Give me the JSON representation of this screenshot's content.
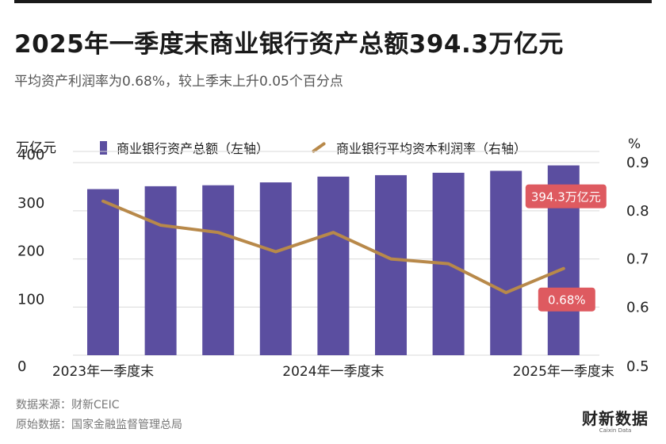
{
  "title": "2025年一季度末商业银行资产总额394.3万亿元",
  "subtitle": "平均资产利润率为0.68%，较上季末上升0.05个百分点",
  "source": "数据来源：财新CEIC",
  "origin": "原始数据：国家金融监督管理总局",
  "logo": {
    "main": "财新数据",
    "sub": "Caixin Data"
  },
  "colors": {
    "bar": "#5b4ea0",
    "line": "#b8894a",
    "callout": "#de5a60",
    "grid": "#d9d9d9"
  },
  "chart_data": {
    "type": "bar+line",
    "categories": [
      "2023年一季度末",
      "",
      "",
      "",
      "2024年一季度末",
      "",
      "",
      "",
      "2025年一季度末"
    ],
    "x_tick_labels": [
      "2023年一季度末",
      "2024年一季度末",
      "2025年一季度末"
    ],
    "left_axis_unit": "万亿元",
    "right_axis_unit": "%",
    "left_ylim": [
      0,
      420
    ],
    "right_ylim": [
      0.5,
      0.92
    ],
    "left_ticks": [
      0,
      100,
      200,
      300,
      400
    ],
    "right_ticks": [
      0.5,
      0.6,
      0.7,
      0.8,
      0.9
    ],
    "grid": true,
    "series": [
      {
        "name": "商业银行资产总额（左轴）",
        "type": "bar",
        "axis": "left",
        "values": [
          345,
          351,
          353,
          359,
          371,
          374,
          379,
          383,
          394.3
        ]
      },
      {
        "name": "商业银行平均资本利润率（右轴）",
        "type": "line",
        "axis": "right",
        "values": [
          0.82,
          0.77,
          0.755,
          0.715,
          0.755,
          0.7,
          0.69,
          0.63,
          0.68
        ]
      }
    ],
    "annotations": [
      {
        "text": "394.3万亿元",
        "series": 0,
        "index": 8
      },
      {
        "text": "0.68%",
        "series": 1,
        "index": 8
      }
    ]
  }
}
